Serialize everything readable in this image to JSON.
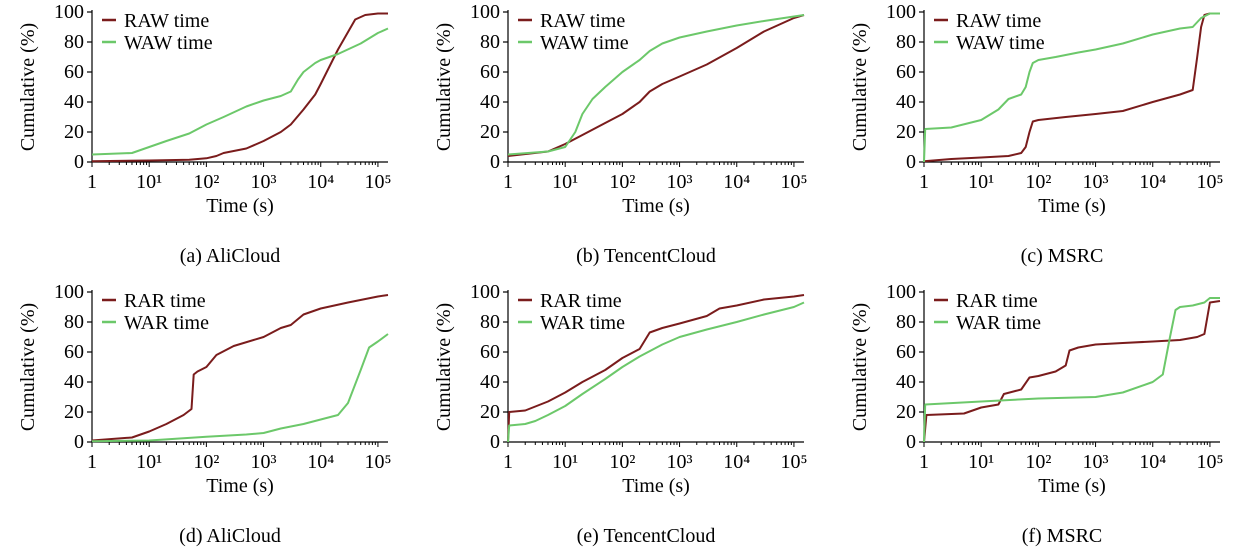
{
  "colors": {
    "raw_or_rar": "#7a1c1c",
    "waw_or_war": "#6cc86a",
    "axis": "#000000"
  },
  "chart_data": [
    {
      "type": "line",
      "caption": "(a) AliCloud",
      "xlabel": "Time (s)",
      "ylabel": "Cumulative (%)",
      "xscale": "log",
      "xlim": [
        1,
        150000
      ],
      "ylim": [
        0,
        100
      ],
      "xticks": [
        1,
        10,
        100,
        1000,
        10000,
        100000
      ],
      "yticks": [
        0,
        20,
        40,
        60,
        80,
        100
      ],
      "legend": "top-left",
      "series": [
        {
          "name": "RAW time",
          "color": "#7a1c1c",
          "x": [
            1,
            10,
            50,
            100,
            150,
            200,
            500,
            1000,
            2000,
            3000,
            5000,
            8000,
            10000,
            20000,
            40000,
            60000,
            100000,
            150000
          ],
          "y": [
            0.5,
            1,
            1.5,
            2.5,
            4,
            6,
            9,
            14,
            20,
            25,
            35,
            45,
            52,
            75,
            95,
            98,
            99,
            99
          ]
        },
        {
          "name": "WAW time",
          "color": "#6cc86a",
          "x": [
            1,
            5,
            10,
            20,
            50,
            100,
            200,
            500,
            1000,
            2000,
            3000,
            4000,
            5000,
            8000,
            10000,
            20000,
            50000,
            100000,
            150000
          ],
          "y": [
            5,
            6,
            10,
            14,
            19,
            25,
            30,
            37,
            41,
            44,
            47,
            55,
            60,
            66,
            68,
            72,
            79,
            86,
            89
          ]
        }
      ]
    },
    {
      "type": "line",
      "caption": "(b) TencentCloud",
      "xlabel": "Time (s)",
      "ylabel": "Cumulative (%)",
      "xscale": "log",
      "xlim": [
        1,
        150000
      ],
      "ylim": [
        0,
        100
      ],
      "xticks": [
        1,
        10,
        100,
        1000,
        10000,
        100000
      ],
      "yticks": [
        0,
        20,
        40,
        60,
        80,
        100
      ],
      "legend": "top-left",
      "series": [
        {
          "name": "RAW time",
          "color": "#7a1c1c",
          "x": [
            1,
            5,
            10,
            20,
            50,
            100,
            200,
            300,
            500,
            1000,
            3000,
            10000,
            30000,
            100000,
            150000
          ],
          "y": [
            4,
            7,
            12,
            18,
            26,
            32,
            40,
            47,
            52,
            57,
            65,
            76,
            87,
            96,
            98
          ]
        },
        {
          "name": "WAW time",
          "color": "#6cc86a",
          "x": [
            1,
            5,
            10,
            15,
            20,
            30,
            50,
            100,
            200,
            300,
            500,
            1000,
            3000,
            10000,
            30000,
            100000,
            150000
          ],
          "y": [
            5,
            7,
            10,
            20,
            32,
            42,
            50,
            60,
            68,
            74,
            79,
            83,
            87,
            91,
            94,
            97,
            98
          ]
        }
      ]
    },
    {
      "type": "line",
      "caption": "(c) MSRC",
      "xlabel": "Time (s)",
      "ylabel": "Cumulative (%)",
      "xscale": "log",
      "xlim": [
        1,
        150000
      ],
      "ylim": [
        0,
        100
      ],
      "xticks": [
        1,
        10,
        100,
        1000,
        10000,
        100000
      ],
      "yticks": [
        0,
        20,
        40,
        60,
        80,
        100
      ],
      "legend": "top-left",
      "series": [
        {
          "name": "RAW time",
          "color": "#7a1c1c",
          "x": [
            1,
            3,
            10,
            30,
            50,
            60,
            70,
            80,
            100,
            300,
            1000,
            3000,
            10000,
            30000,
            50000,
            60000,
            70000,
            80000,
            100000,
            150000
          ],
          "y": [
            0.5,
            2,
            3,
            4,
            6,
            10,
            20,
            27,
            28,
            30,
            32,
            34,
            40,
            45,
            48,
            70,
            90,
            98,
            99,
            99
          ]
        },
        {
          "name": "WAW time",
          "color": "#6cc86a",
          "x": [
            1,
            1.05,
            3,
            10,
            20,
            30,
            50,
            60,
            70,
            80,
            100,
            200,
            500,
            1000,
            3000,
            10000,
            30000,
            50000,
            70000,
            100000,
            150000
          ],
          "y": [
            0,
            22,
            23,
            28,
            35,
            42,
            45,
            50,
            60,
            66,
            68,
            70,
            73,
            75,
            79,
            85,
            89,
            90,
            96,
            99,
            99
          ]
        }
      ]
    },
    {
      "type": "line",
      "caption": "(d) AliCloud",
      "xlabel": "Time (s)",
      "ylabel": "Cumulative (%)",
      "xscale": "log",
      "xlim": [
        1,
        150000
      ],
      "ylim": [
        0,
        100
      ],
      "xticks": [
        1,
        10,
        100,
        1000,
        10000,
        100000
      ],
      "yticks": [
        0,
        20,
        40,
        60,
        80,
        100
      ],
      "legend": "top-left",
      "series": [
        {
          "name": "RAR time",
          "color": "#7a1c1c",
          "x": [
            1,
            5,
            10,
            20,
            40,
            55,
            60,
            70,
            100,
            150,
            300,
            1000,
            2000,
            3000,
            5000,
            10000,
            30000,
            100000,
            150000
          ],
          "y": [
            1,
            3,
            7,
            12,
            18,
            22,
            45,
            47,
            50,
            58,
            64,
            70,
            76,
            78,
            85,
            89,
            93,
            97,
            98
          ]
        },
        {
          "name": "WAR time",
          "color": "#6cc86a",
          "x": [
            1,
            10,
            100,
            500,
            1000,
            2000,
            5000,
            10000,
            20000,
            30000,
            50000,
            70000,
            100000,
            150000
          ],
          "y": [
            0.5,
            1,
            3.5,
            5,
            6,
            9,
            12,
            15,
            18,
            26,
            48,
            63,
            67,
            72
          ]
        }
      ]
    },
    {
      "type": "line",
      "caption": "(e) TencentCloud",
      "xlabel": "Time (s)",
      "ylabel": "Cumulative (%)",
      "xscale": "log",
      "xlim": [
        1,
        150000
      ],
      "ylim": [
        0,
        100
      ],
      "xticks": [
        1,
        10,
        100,
        1000,
        10000,
        100000
      ],
      "yticks": [
        0,
        20,
        40,
        60,
        80,
        100
      ],
      "legend": "top-left",
      "series": [
        {
          "name": "RAR time",
          "color": "#7a1c1c",
          "x": [
            1,
            1.05,
            2,
            5,
            10,
            20,
            50,
            100,
            200,
            300,
            500,
            1000,
            3000,
            5000,
            10000,
            30000,
            100000,
            150000
          ],
          "y": [
            0,
            20,
            21,
            27,
            33,
            40,
            48,
            56,
            62,
            73,
            76,
            79,
            84,
            89,
            91,
            95,
            97,
            98
          ]
        },
        {
          "name": "WAR time",
          "color": "#6cc86a",
          "x": [
            1,
            1.05,
            2,
            3,
            5,
            10,
            20,
            50,
            100,
            200,
            500,
            1000,
            3000,
            10000,
            30000,
            100000,
            150000
          ],
          "y": [
            0,
            11,
            12,
            14,
            18,
            24,
            32,
            42,
            50,
            57,
            65,
            70,
            75,
            80,
            85,
            90,
            93
          ]
        }
      ]
    },
    {
      "type": "line",
      "caption": "(f) MSRC",
      "xlabel": "Time (s)",
      "ylabel": "Cumulative (%)",
      "xscale": "log",
      "xlim": [
        1,
        150000
      ],
      "ylim": [
        0,
        100
      ],
      "xticks": [
        1,
        10,
        100,
        1000,
        10000,
        100000
      ],
      "yticks": [
        0,
        20,
        40,
        60,
        80,
        100
      ],
      "legend": "top-left",
      "series": [
        {
          "name": "RAR time",
          "color": "#7a1c1c",
          "x": [
            1,
            1.1,
            5,
            10,
            20,
            25,
            50,
            70,
            100,
            200,
            300,
            350,
            500,
            1000,
            3000,
            10000,
            30000,
            60000,
            80000,
            100000,
            150000
          ],
          "y": [
            0,
            18,
            19,
            23,
            25,
            32,
            35,
            43,
            44,
            47,
            51,
            61,
            63,
            65,
            66,
            67,
            68,
            70,
            72,
            93,
            94
          ]
        },
        {
          "name": "WAR time",
          "color": "#6cc86a",
          "x": [
            1,
            1.05,
            10,
            100,
            1000,
            3000,
            10000,
            15000,
            20000,
            25000,
            30000,
            50000,
            80000,
            100000,
            150000
          ],
          "y": [
            0,
            25,
            27,
            29,
            30,
            33,
            40,
            45,
            70,
            88,
            90,
            91,
            93,
            96,
            96
          ]
        }
      ]
    }
  ]
}
